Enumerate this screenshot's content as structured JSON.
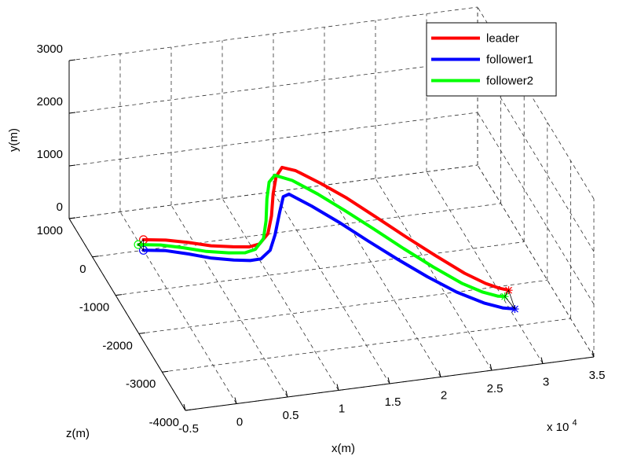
{
  "chart_data": {
    "type": "line3d",
    "title": "",
    "xlabel": "x(m)",
    "ylabel": "y(m)",
    "zlabel": "z(m)",
    "x_multiplier_label": "x 10",
    "x_multiplier_exponent": "4",
    "x_ticks": [
      "-0.5",
      "0",
      "0.5",
      "1",
      "1.5",
      "2",
      "2.5",
      "3",
      "3.5"
    ],
    "y_ticks": [
      "0",
      "1000",
      "2000",
      "3000"
    ],
    "z_ticks": [
      "1000",
      "0",
      "-1000",
      "-2000",
      "-3000",
      "-4000"
    ],
    "xlim": [
      -0.5,
      3.5
    ],
    "ylim": [
      0,
      3000
    ],
    "zlim": [
      -4000,
      1000
    ],
    "grid": true,
    "legend_position": "top-right",
    "series": [
      {
        "name": "leader",
        "color": "#ff0000",
        "start_marker": "o",
        "end_marker": "*",
        "points": [
          [
            0.0,
            200,
            0
          ],
          [
            0.2,
            200,
            -80
          ],
          [
            0.4,
            170,
            -170
          ],
          [
            0.6,
            130,
            -270
          ],
          [
            0.8,
            110,
            -340
          ],
          [
            0.95,
            100,
            -380
          ],
          [
            1.05,
            130,
            -380
          ],
          [
            1.15,
            240,
            -300
          ],
          [
            1.22,
            450,
            -150
          ],
          [
            1.27,
            750,
            0
          ],
          [
            1.32,
            1000,
            90
          ],
          [
            1.38,
            1150,
            100
          ],
          [
            1.5,
            1100,
            40
          ],
          [
            1.7,
            950,
            -150
          ],
          [
            1.9,
            800,
            -400
          ],
          [
            2.1,
            650,
            -750
          ],
          [
            2.3,
            520,
            -1150
          ],
          [
            2.5,
            400,
            -1550
          ],
          [
            2.7,
            300,
            -1950
          ],
          [
            2.85,
            250,
            -2200
          ],
          [
            2.95,
            230,
            -2330
          ],
          [
            3.03,
            220,
            -2400
          ]
        ]
      },
      {
        "name": "follower1",
        "color": "#0000ff",
        "start_marker": "o",
        "end_marker": "*",
        "points": [
          [
            0.0,
            0,
            0
          ],
          [
            0.2,
            0,
            -80
          ],
          [
            0.4,
            -40,
            -180
          ],
          [
            0.6,
            -90,
            -290
          ],
          [
            0.8,
            -120,
            -370
          ],
          [
            0.95,
            -130,
            -420
          ],
          [
            1.05,
            -110,
            -440
          ],
          [
            1.15,
            0,
            -400
          ],
          [
            1.22,
            200,
            -300
          ],
          [
            1.3,
            500,
            -150
          ],
          [
            1.36,
            700,
            -40
          ],
          [
            1.42,
            720,
            -20
          ],
          [
            1.6,
            580,
            -200
          ],
          [
            1.8,
            440,
            -500
          ],
          [
            2.0,
            310,
            -880
          ],
          [
            2.2,
            200,
            -1280
          ],
          [
            2.4,
            110,
            -1680
          ],
          [
            2.6,
            40,
            -2050
          ],
          [
            2.8,
            0,
            -2350
          ],
          [
            2.95,
            -10,
            -2520
          ],
          [
            3.05,
            -10,
            -2580
          ]
        ]
      },
      {
        "name": "follower2",
        "color": "#00ff00",
        "start_marker": "o",
        "end_marker": "*",
        "points": [
          [
            -0.05,
            120,
            0
          ],
          [
            0.15,
            120,
            -80
          ],
          [
            0.35,
            90,
            -180
          ],
          [
            0.55,
            50,
            -290
          ],
          [
            0.75,
            30,
            -370
          ],
          [
            0.9,
            30,
            -420
          ],
          [
            1.0,
            70,
            -420
          ],
          [
            1.1,
            180,
            -330
          ],
          [
            1.16,
            400,
            -180
          ],
          [
            1.2,
            700,
            -40
          ],
          [
            1.24,
            950,
            40
          ],
          [
            1.3,
            1050,
            60
          ],
          [
            1.45,
            980,
            -30
          ],
          [
            1.65,
            830,
            -250
          ],
          [
            1.85,
            680,
            -550
          ],
          [
            2.05,
            540,
            -900
          ],
          [
            2.25,
            410,
            -1300
          ],
          [
            2.45,
            300,
            -1700
          ],
          [
            2.65,
            210,
            -2080
          ],
          [
            2.8,
            170,
            -2300
          ],
          [
            2.92,
            150,
            -2420
          ],
          [
            2.98,
            150,
            -2450
          ]
        ]
      }
    ]
  }
}
